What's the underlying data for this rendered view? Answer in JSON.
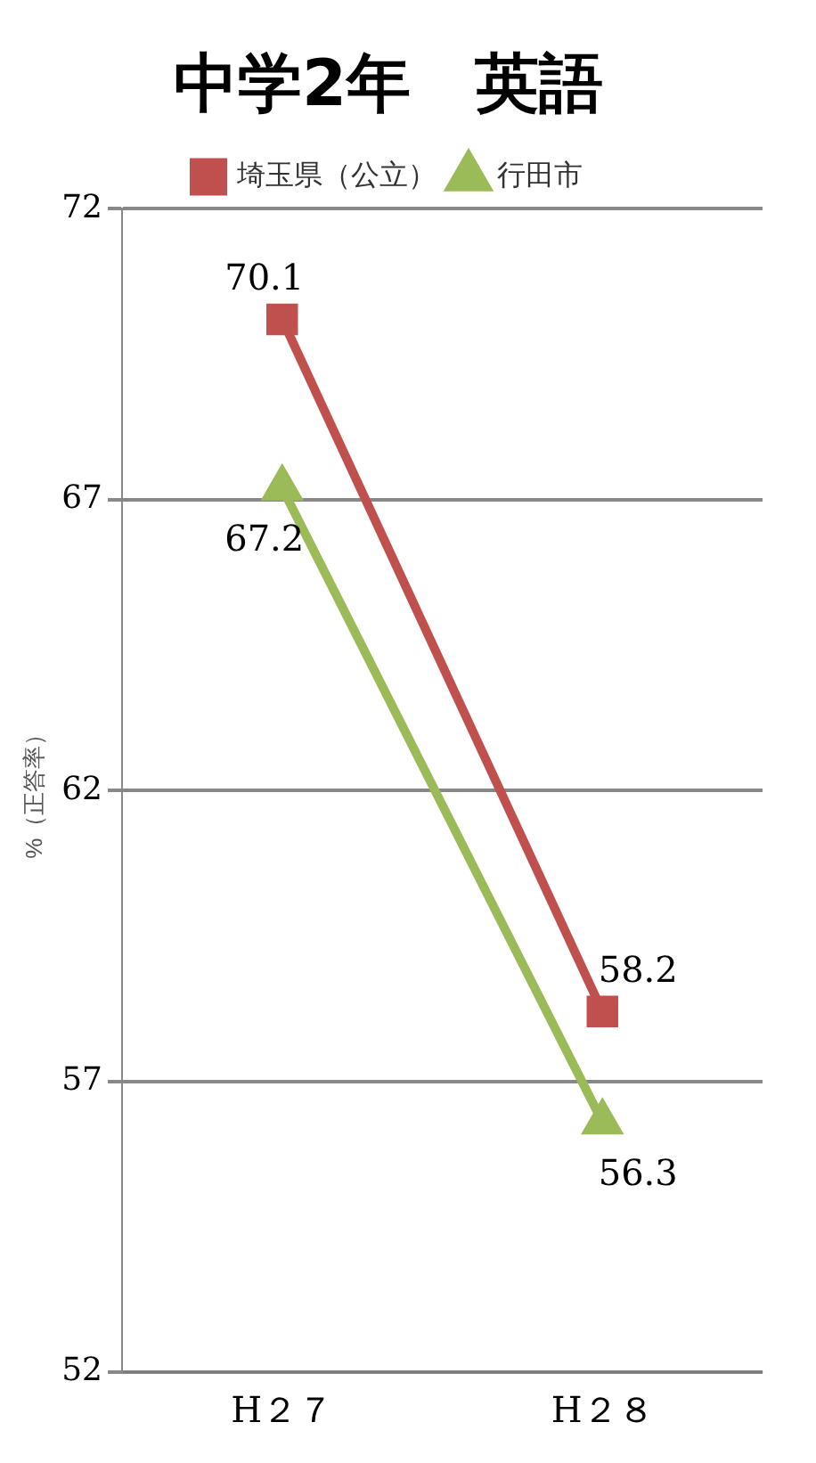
{
  "chart_data": {
    "type": "line",
    "title": "中学2年　英語",
    "ylabel": "%（正答率）",
    "categories": [
      "H２７",
      "H２８"
    ],
    "series": [
      {
        "name": "埼玉県（公立）",
        "color": "#c0504d",
        "values": [
          70.1,
          58.2
        ],
        "marker": "square"
      },
      {
        "name": "行田市",
        "color": "#9bbb59",
        "values": [
          67.2,
          56.3
        ],
        "marker": "triangle"
      }
    ],
    "ylim": [
      52,
      72
    ],
    "yticks": [
      52,
      57,
      62,
      67,
      72
    ],
    "grid": "y",
    "legend": "top",
    "data_labels": true
  }
}
